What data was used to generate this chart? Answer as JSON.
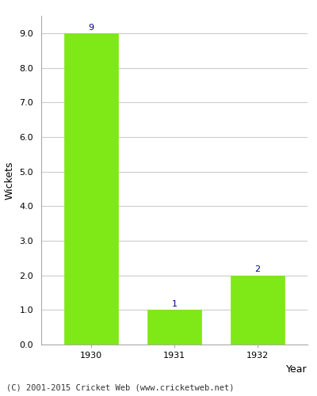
{
  "categories": [
    "1930",
    "1931",
    "1932"
  ],
  "values": [
    9,
    1,
    2
  ],
  "bar_color": "#7FE817",
  "xlabel": "Year",
  "ylabel": "Wickets",
  "ylim": [
    0,
    9.5
  ],
  "yticks": [
    0.0,
    1.0,
    2.0,
    3.0,
    4.0,
    5.0,
    6.0,
    7.0,
    8.0,
    9.0
  ],
  "annotation_color": "#00008B",
  "annotation_fontsize": 8,
  "axis_label_fontsize": 9,
  "tick_fontsize": 8,
  "footer_text": "(C) 2001-2015 Cricket Web (www.cricketweb.net)",
  "footer_fontsize": 7.5,
  "background_color": "#ffffff",
  "grid_color": "#cccccc",
  "bar_width": 0.65
}
